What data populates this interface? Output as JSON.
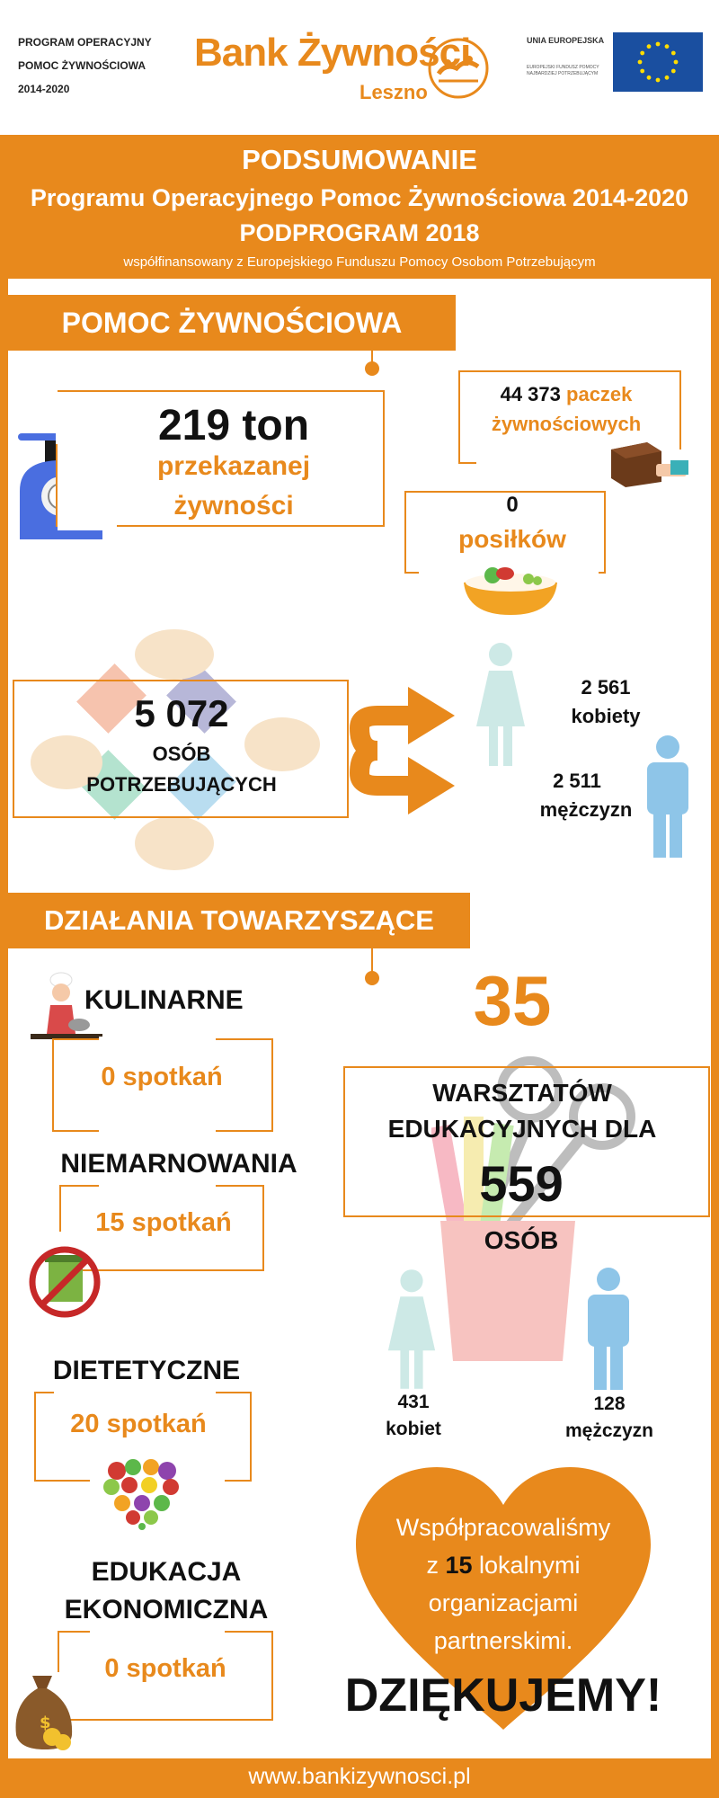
{
  "header": {
    "program_lines": [
      "PROGRAM OPERACYJNY",
      "POMOC ŻYWNOŚCIOWA",
      "2014-2020"
    ],
    "logo_title": "Bank Żywności",
    "logo_city": "Leszno",
    "eu_title": "UNIA EUROPEJSKA",
    "eu_sub": "EUROPEJSKI FUNDUSZ POMOCY NAJBARDZIEJ POTRZEBUJĄCYM"
  },
  "banner": {
    "line1": "PODSUMOWANIE",
    "line2": "Programu Operacyjnego Pomoc Żywnościowa 2014-2020",
    "line3": "PODPROGRAM 2018",
    "line4": "współfinansowany z Europejskiego Funduszu Pomocy Osobom Potrzebującym"
  },
  "food_aid": {
    "section_title": "POMOC ŻYWNOŚCIOWA",
    "tons_value": "219 ton",
    "tons_label1": "przekazanej",
    "tons_label2": "żywności",
    "packages_value": "44 373",
    "packages_label1": "paczek",
    "packages_label2": "żywnościowych",
    "meals_value": "0",
    "meals_label": "posiłków",
    "people_value": "5 072",
    "people_label1": "OSÓB",
    "people_label2": "POTRZEBUJĄCYCH",
    "women_value": "2 561",
    "women_label": "kobiety",
    "men_value": "2 511",
    "men_label": "mężczyzn"
  },
  "activities": {
    "section_title": "DZIAŁANIA TOWARZYSZĄCE",
    "items": [
      {
        "title": "KULINARNE",
        "meetings": "0 spotkań"
      },
      {
        "title": "NIEMARNOWANIA",
        "meetings": "15 spotkań"
      },
      {
        "title": "DIETETYCZNE",
        "meetings": "20 spotkań"
      },
      {
        "title1": "EDUKACJA",
        "title2": "EKONOMICZNA",
        "meetings": "0 spotkań"
      }
    ],
    "workshops_value": "35",
    "workshops_label1": "WARSZTATÓW",
    "workshops_label2": "EDUKACYJNYCH DLA",
    "workshops_people": "559",
    "workshops_people_label": "OSÓB",
    "ws_women_value": "431",
    "ws_women_label": "kobiet",
    "ws_men_value": "128",
    "ws_men_label": "mężczyzn"
  },
  "partners": {
    "line1": "Współpracowaliśmy",
    "line2_pre": "z",
    "line2_num": "15",
    "line2_post": "lokalnymi",
    "line3": "organizacjami",
    "line4": "partnerskimi.",
    "thanks": "DZIĘKUJEMY!"
  },
  "footer": {
    "url": "www.bankizywnosci.pl"
  },
  "colors": {
    "accent": "#e8891c",
    "women": "#cde9e6",
    "men": "#8ec5e8",
    "eu_blue": "#1a4fa0",
    "eu_star": "#ffdd00"
  }
}
